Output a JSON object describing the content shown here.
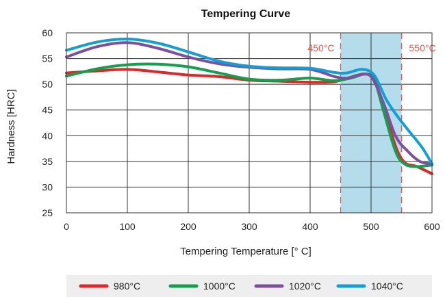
{
  "chart_data": {
    "type": "line",
    "title": "Tempering Curve",
    "xlabel": "Tempering Temperature [° C]",
    "ylabel": "Hardness [HRC]",
    "xlim": [
      0,
      600
    ],
    "ylim": [
      25,
      60
    ],
    "xticks": [
      "0",
      "100",
      "200",
      "300",
      "400",
      "500",
      "600"
    ],
    "yticks": [
      "25",
      "30",
      "35",
      "40",
      "45",
      "50",
      "55",
      "60"
    ],
    "grid": true,
    "legend_position": "bottom",
    "highlight_band": {
      "from": 450,
      "to": 550,
      "color": "#b5dcea"
    },
    "annotations": [
      {
        "x": 450,
        "label": "450°C",
        "color": "#e8574a"
      },
      {
        "x": 550,
        "label": "550°C",
        "color": "#e8574a"
      }
    ],
    "series": [
      {
        "name": "980°C",
        "color": "#e42526",
        "points": [
          [
            0,
            52.2
          ],
          [
            50,
            52.6
          ],
          [
            100,
            52.9
          ],
          [
            150,
            52.4
          ],
          [
            200,
            51.8
          ],
          [
            250,
            51.5
          ],
          [
            300,
            50.8
          ],
          [
            350,
            50.6
          ],
          [
            400,
            50.4
          ],
          [
            440,
            50.5
          ],
          [
            470,
            51.5
          ],
          [
            490,
            52.0
          ],
          [
            505,
            51.0
          ],
          [
            520,
            46.0
          ],
          [
            540,
            38.0
          ],
          [
            555,
            34.8
          ],
          [
            575,
            34.0
          ],
          [
            600,
            32.6
          ]
        ]
      },
      {
        "name": "1000°C",
        "color": "#0fa24c",
        "points": [
          [
            0,
            51.6
          ],
          [
            50,
            53.0
          ],
          [
            100,
            53.8
          ],
          [
            150,
            53.9
          ],
          [
            200,
            53.4
          ],
          [
            250,
            52.2
          ],
          [
            300,
            51.0
          ],
          [
            350,
            50.8
          ],
          [
            400,
            51.2
          ],
          [
            440,
            50.7
          ],
          [
            470,
            51.3
          ],
          [
            490,
            52.0
          ],
          [
            505,
            51.0
          ],
          [
            520,
            45.0
          ],
          [
            540,
            37.0
          ],
          [
            555,
            34.5
          ],
          [
            575,
            34.0
          ],
          [
            600,
            34.3
          ]
        ]
      },
      {
        "name": "1020°C",
        "color": "#7d4fa0",
        "points": [
          [
            0,
            55.3
          ],
          [
            50,
            57.3
          ],
          [
            100,
            58.1
          ],
          [
            150,
            57.0
          ],
          [
            200,
            55.3
          ],
          [
            250,
            54.0
          ],
          [
            300,
            53.3
          ],
          [
            350,
            53.0
          ],
          [
            400,
            52.9
          ],
          [
            440,
            51.5
          ],
          [
            460,
            51.2
          ],
          [
            480,
            51.8
          ],
          [
            500,
            51.5
          ],
          [
            520,
            46.5
          ],
          [
            540,
            40.0
          ],
          [
            560,
            37.0
          ],
          [
            580,
            35.0
          ],
          [
            600,
            34.5
          ]
        ]
      },
      {
        "name": "1040°C",
        "color": "#0ea0db",
        "points": [
          [
            0,
            56.6
          ],
          [
            50,
            58.2
          ],
          [
            100,
            58.8
          ],
          [
            150,
            58.0
          ],
          [
            200,
            56.3
          ],
          [
            250,
            54.5
          ],
          [
            300,
            53.5
          ],
          [
            350,
            53.2
          ],
          [
            400,
            53.1
          ],
          [
            440,
            52.3
          ],
          [
            460,
            52.2
          ],
          [
            485,
            52.9
          ],
          [
            505,
            51.8
          ],
          [
            525,
            47.0
          ],
          [
            545,
            43.5
          ],
          [
            565,
            40.5
          ],
          [
            585,
            37.5
          ],
          [
            600,
            34.5
          ]
        ]
      }
    ]
  }
}
